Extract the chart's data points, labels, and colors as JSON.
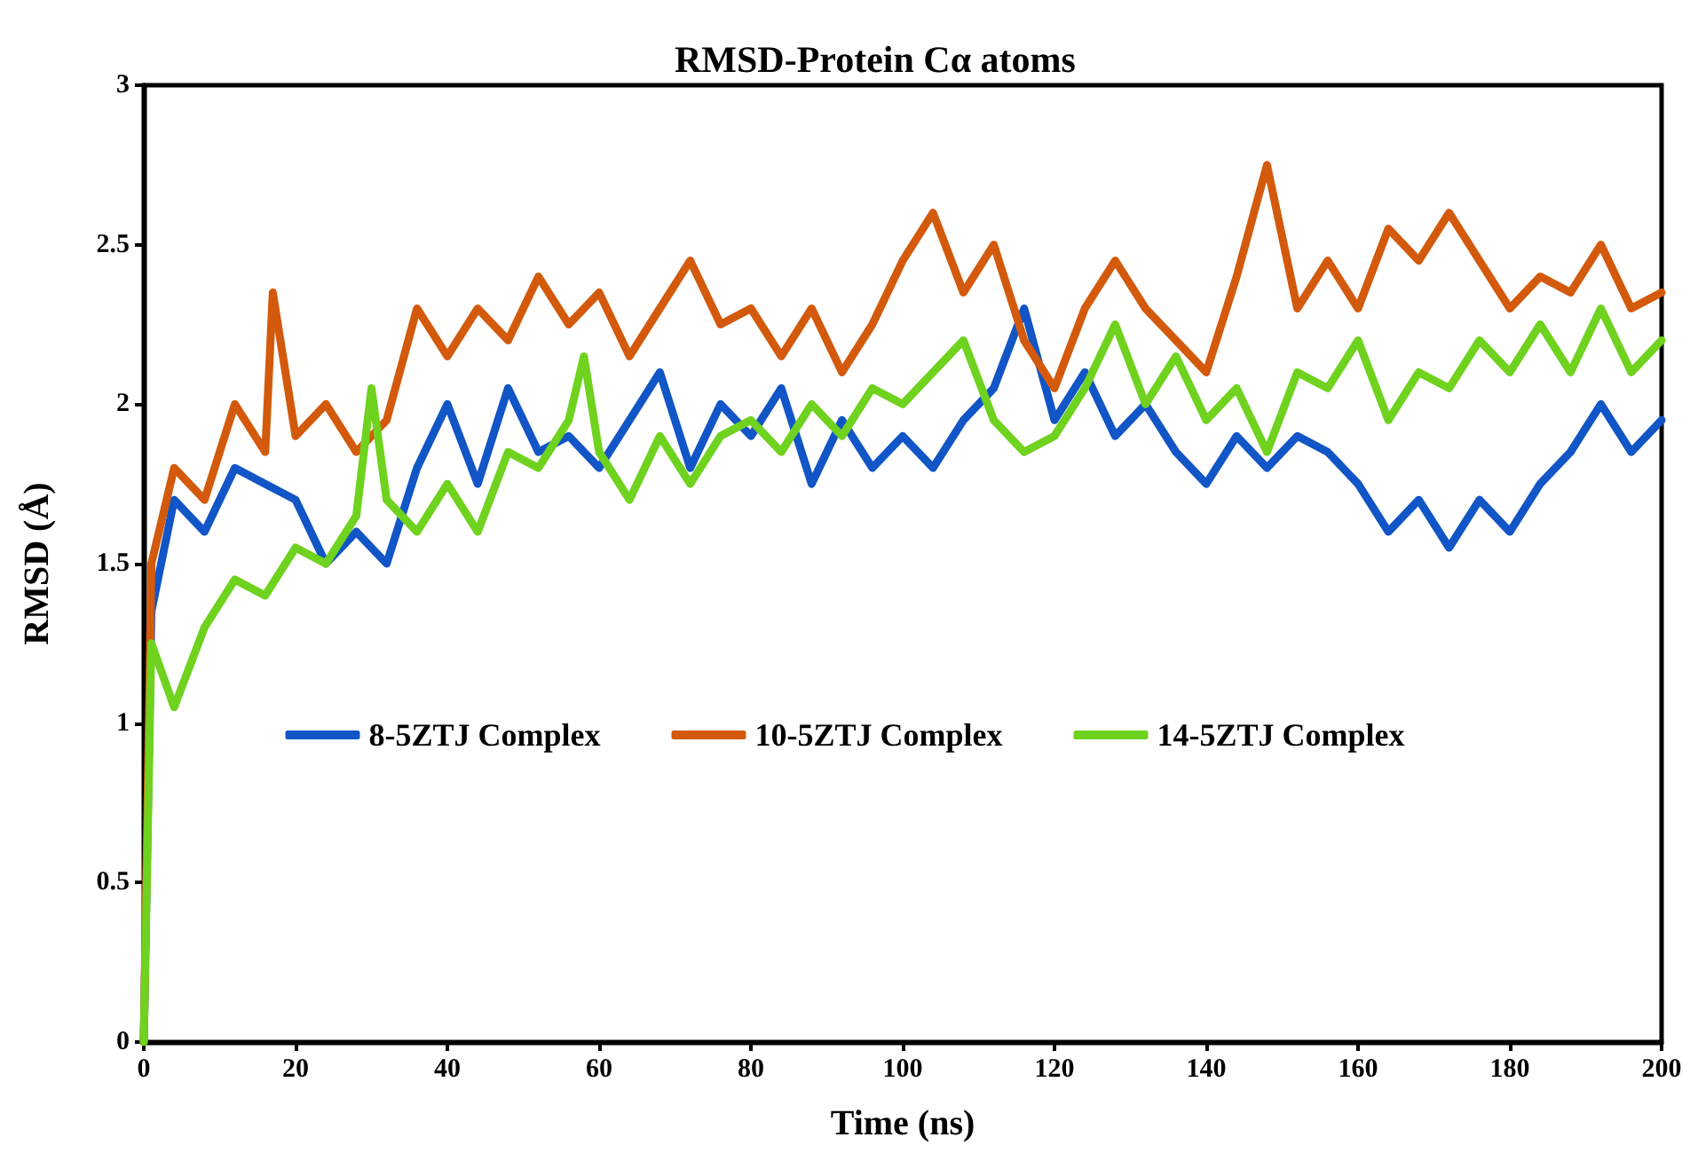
{
  "chart_data": {
    "type": "line",
    "title": "RMSD-Protein Cα atoms",
    "xlabel": "Time (ns)",
    "ylabel": "RMSD (Å)",
    "xlim": [
      0,
      200
    ],
    "xticks": [
      0,
      20,
      40,
      60,
      80,
      100,
      120,
      140,
      160,
      180,
      200
    ],
    "ylim": [
      0,
      3
    ],
    "yticks": [
      0,
      0.5,
      1,
      1.5,
      2,
      2.5,
      3
    ],
    "grid": false,
    "legend": "center",
    "line_style": "solid",
    "marker": "none",
    "series": [
      {
        "name": "8-5ZTJ Complex",
        "color": "#1155c6",
        "x": [
          0,
          1,
          4,
          8,
          12,
          16,
          20,
          24,
          28,
          32,
          36,
          40,
          44,
          48,
          52,
          56,
          60,
          64,
          68,
          72,
          76,
          80,
          84,
          88,
          92,
          96,
          100,
          104,
          108,
          112,
          116,
          120,
          124,
          128,
          132,
          136,
          140,
          144,
          148,
          152,
          156,
          160,
          164,
          168,
          172,
          176,
          180,
          184,
          188,
          192,
          196,
          200
        ],
        "values": [
          0,
          1.35,
          1.7,
          1.6,
          1.8,
          1.75,
          1.7,
          1.5,
          1.6,
          1.5,
          1.8,
          2.0,
          1.75,
          2.05,
          1.85,
          1.9,
          1.8,
          1.95,
          2.1,
          1.8,
          2.0,
          1.9,
          2.05,
          1.75,
          1.95,
          1.8,
          1.9,
          1.8,
          1.95,
          2.05,
          2.3,
          1.95,
          2.1,
          1.9,
          2.0,
          1.85,
          1.75,
          1.9,
          1.8,
          1.9,
          1.85,
          1.75,
          1.6,
          1.7,
          1.55,
          1.7,
          1.6,
          1.75,
          1.85,
          2.0,
          1.85,
          1.95
        ]
      },
      {
        "name": "10-5ZTJ Complex",
        "color": "#d35a0c",
        "x": [
          0,
          1,
          4,
          8,
          12,
          16,
          17,
          20,
          24,
          28,
          32,
          36,
          40,
          44,
          48,
          52,
          56,
          60,
          64,
          68,
          72,
          76,
          80,
          84,
          88,
          92,
          96,
          100,
          104,
          108,
          112,
          116,
          120,
          124,
          128,
          132,
          136,
          140,
          144,
          148,
          152,
          156,
          160,
          164,
          168,
          172,
          176,
          180,
          184,
          188,
          192,
          196,
          200
        ],
        "values": [
          0,
          1.5,
          1.8,
          1.7,
          2.0,
          1.85,
          2.35,
          1.9,
          2.0,
          1.85,
          1.95,
          2.3,
          2.15,
          2.3,
          2.2,
          2.4,
          2.25,
          2.35,
          2.15,
          2.3,
          2.45,
          2.25,
          2.3,
          2.15,
          2.3,
          2.1,
          2.25,
          2.45,
          2.6,
          2.35,
          2.5,
          2.2,
          2.05,
          2.3,
          2.45,
          2.3,
          2.2,
          2.1,
          2.4,
          2.75,
          2.3,
          2.45,
          2.3,
          2.55,
          2.45,
          2.6,
          2.45,
          2.3,
          2.4,
          2.35,
          2.5,
          2.3,
          2.35
        ]
      },
      {
        "name": "14-5ZTJ Complex",
        "color": "#6fd21e",
        "x": [
          0,
          1,
          4,
          8,
          12,
          16,
          20,
          24,
          28,
          30,
          32,
          36,
          40,
          44,
          48,
          52,
          56,
          58,
          60,
          64,
          68,
          72,
          76,
          80,
          84,
          88,
          92,
          96,
          100,
          104,
          108,
          112,
          116,
          120,
          124,
          128,
          132,
          136,
          140,
          144,
          148,
          152,
          156,
          160,
          164,
          168,
          172,
          176,
          180,
          184,
          188,
          192,
          196,
          200
        ],
        "values": [
          0,
          1.25,
          1.05,
          1.3,
          1.45,
          1.4,
          1.55,
          1.5,
          1.65,
          2.05,
          1.7,
          1.6,
          1.75,
          1.6,
          1.85,
          1.8,
          1.95,
          2.15,
          1.85,
          1.7,
          1.9,
          1.75,
          1.9,
          1.95,
          1.85,
          2.0,
          1.9,
          2.05,
          2.0,
          2.1,
          2.2,
          1.95,
          1.85,
          1.9,
          2.05,
          2.25,
          2.0,
          2.15,
          1.95,
          2.05,
          1.85,
          2.1,
          2.05,
          2.2,
          1.95,
          2.1,
          2.05,
          2.2,
          2.1,
          2.25,
          2.1,
          2.3,
          2.1,
          2.2
        ]
      }
    ]
  }
}
